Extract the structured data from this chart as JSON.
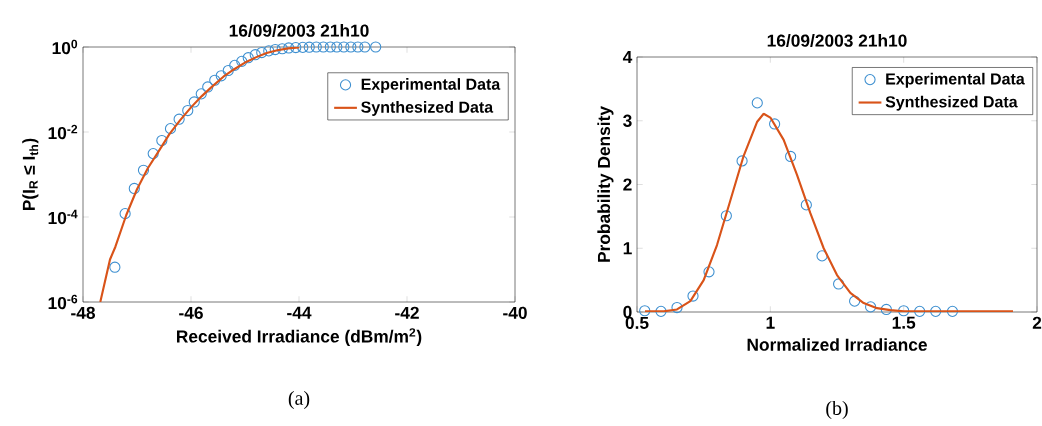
{
  "chart_data": [
    {
      "type": "scatter",
      "title": "16/09/2003 21h10",
      "xlabel": "Received Irradiance (dBm/m$^{2}$)",
      "ylabel": "P(I$_{R}$ ≤ I$_{th}$)",
      "log": "y",
      "legend": "top right",
      "xlim": [
        -48,
        -40
      ],
      "xticks": [
        -48,
        -46,
        -44,
        -42,
        -40
      ],
      "ylim": [
        1e-06,
        1
      ],
      "yticks": [
        {
          "value": 1e-06,
          "label": "10$^{-6}$"
        },
        {
          "value": 0.0001,
          "label": "10$^{-4}$"
        },
        {
          "value": 0.01,
          "label": "10$^{-2}$"
        },
        {
          "value": 1,
          "label": "10$^{0}$"
        }
      ],
      "annotations": [
        "(a)"
      ],
      "series": [
        {
          "name": "Experimental Data",
          "marker": "circle",
          "color": "#3d8fd0",
          "x": [
            -47.41,
            -47.22,
            -47.05,
            -46.88,
            -46.7,
            -46.54,
            -46.38,
            -46.22,
            -46.06,
            -45.94,
            -45.81,
            -45.69,
            -45.56,
            -45.44,
            -45.31,
            -45.19,
            -45.06,
            -44.94,
            -44.81,
            -44.69,
            -44.56,
            -44.44,
            -44.31,
            -44.19,
            -44.06,
            -43.93,
            -43.81,
            -43.68,
            -43.55,
            -43.42,
            -43.3,
            -43.17,
            -43.04,
            -42.91,
            -42.78,
            -42.58
          ],
          "values": [
            6.6e-06,
            0.00012,
            0.00047,
            0.00126,
            0.0031,
            0.0063,
            0.012,
            0.02,
            0.032,
            0.051,
            0.079,
            0.115,
            0.165,
            0.21,
            0.28,
            0.37,
            0.46,
            0.56,
            0.66,
            0.74,
            0.81,
            0.87,
            0.91,
            0.95,
            0.97,
            0.98,
            0.99,
            1,
            1,
            1,
            1,
            1,
            1,
            1,
            1,
            1
          ]
        },
        {
          "name": "Synthesized Data",
          "type": "line",
          "color": "#d95319",
          "x": [
            -47.68,
            -47.5,
            -47.4,
            -47.2,
            -47.0,
            -46.8,
            -46.6,
            -46.4,
            -46.2,
            -46.0,
            -45.8,
            -45.6,
            -45.4,
            -45.2,
            -45.0,
            -44.8,
            -44.6,
            -44.4,
            -44.2,
            -44.0
          ],
          "values": [
            1e-06,
            1e-05,
            2e-05,
            0.00011,
            0.00045,
            0.0014,
            0.0035,
            0.0089,
            0.019,
            0.038,
            0.07,
            0.12,
            0.2,
            0.3,
            0.43,
            0.57,
            0.72,
            0.84,
            0.93,
            0.98
          ]
        }
      ]
    },
    {
      "type": "scatter",
      "title": "16/09/2003 21h10",
      "xlabel": "Normalized Irradiance",
      "ylabel": "Probability Density",
      "legend": "top right",
      "xlim": [
        0.5,
        2
      ],
      "xticks": [
        0.5,
        1,
        1.5,
        2
      ],
      "ylim": [
        0,
        4
      ],
      "yticks": [
        0,
        1,
        2,
        3,
        4
      ],
      "annotations": [
        "(b)"
      ],
      "series": [
        {
          "name": "Experimental Data",
          "marker": "circle",
          "color": "#3d8fd0",
          "x": [
            0.529,
            0.59,
            0.65,
            0.71,
            0.77,
            0.835,
            0.894,
            0.951,
            1.016,
            1.076,
            1.135,
            1.194,
            1.256,
            1.316,
            1.376,
            1.435,
            1.5,
            1.56,
            1.62,
            1.683
          ],
          "values": [
            0.02,
            0.01,
            0.07,
            0.25,
            0.63,
            1.51,
            2.37,
            3.28,
            2.95,
            2.44,
            1.68,
            0.88,
            0.44,
            0.17,
            0.08,
            0.04,
            0.02,
            0.01,
            0.01,
            0.01
          ]
        },
        {
          "name": "Synthesized Data",
          "type": "line",
          "color": "#d95319",
          "x": [
            0.53,
            0.6,
            0.65,
            0.7,
            0.75,
            0.8,
            0.85,
            0.9,
            0.95,
            0.975,
            1.0,
            1.05,
            1.1,
            1.15,
            1.2,
            1.25,
            1.3,
            1.35,
            1.4,
            1.45,
            1.5,
            1.6,
            1.91
          ],
          "values": [
            0.01,
            0.01,
            0.04,
            0.17,
            0.5,
            1.05,
            1.75,
            2.45,
            2.98,
            3.11,
            3.05,
            2.7,
            2.15,
            1.55,
            1.0,
            0.58,
            0.3,
            0.14,
            0.06,
            0.03,
            0.01,
            0.01,
            0.01
          ]
        }
      ]
    }
  ]
}
